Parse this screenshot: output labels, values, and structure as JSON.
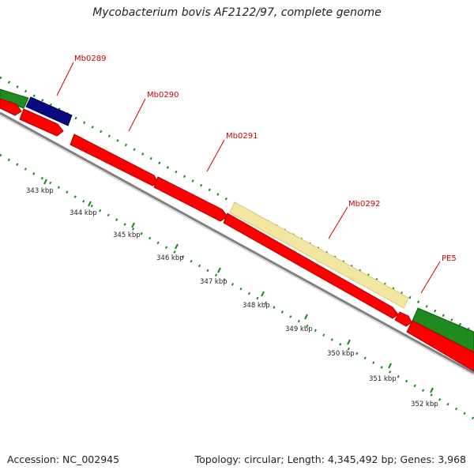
{
  "title": "Mycobacterium bovis AF2122/97, complete genome",
  "footer": {
    "accession": "Accession: NC_002945",
    "summary": "Topology: circular; Length: 4,345,492 bp; Genes: 3,968"
  },
  "colors": {
    "cds": "#ff0000",
    "green_feature": "#1f8a1f",
    "navy_feature": "#0a0a80",
    "yellow_feature": "#f2e6a0",
    "backbone": "#808080",
    "gc_dots": "#1a8a1a",
    "label": "#cc0000"
  },
  "gene_labels": [
    {
      "id": "mb0289",
      "text": "Mb0289"
    },
    {
      "id": "mb0290",
      "text": "Mb0290"
    },
    {
      "id": "mb0291",
      "text": "Mb0291"
    },
    {
      "id": "mb0292",
      "text": "Mb0292"
    },
    {
      "id": "pe5",
      "text": "PE5"
    }
  ],
  "scale_ticks": [
    "343 kbp",
    "344 kbp",
    "345 kbp",
    "346 kbp",
    "347 kbp",
    "348 kbp",
    "349 kbp",
    "350 kbp",
    "351 kbp",
    "352 kbp"
  ]
}
